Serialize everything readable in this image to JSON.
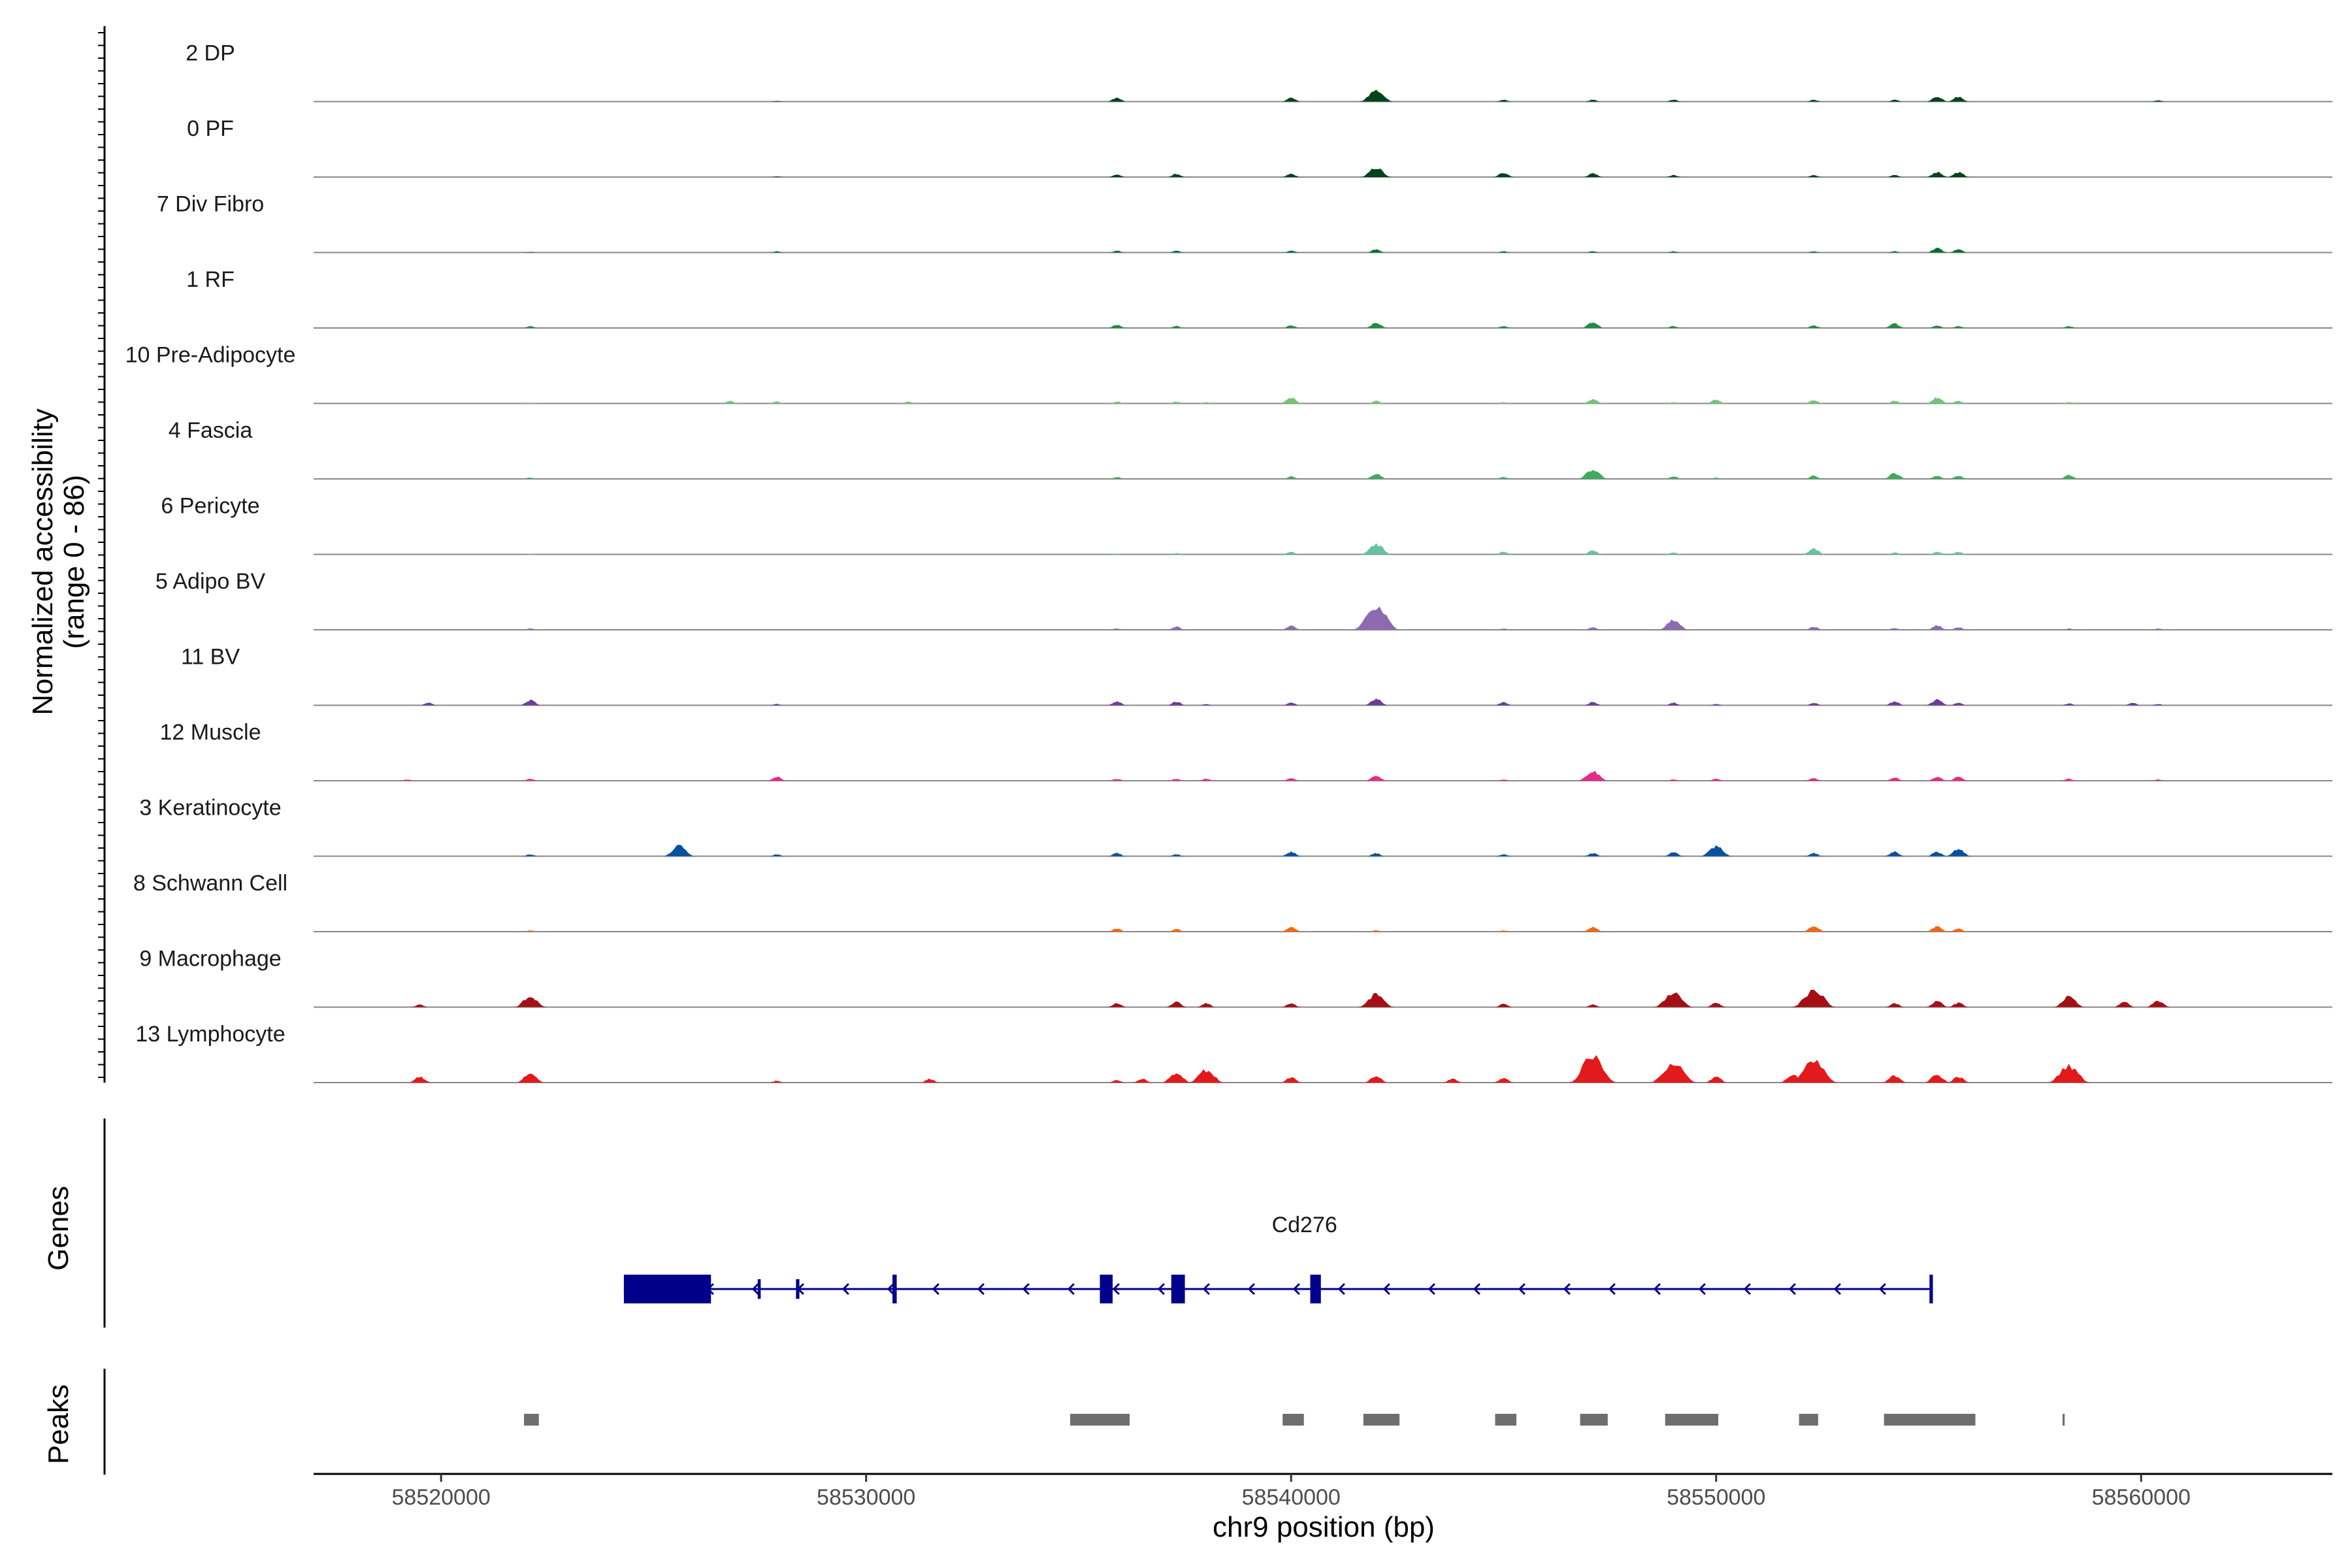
{
  "chart_data": {
    "type": "area",
    "title": "",
    "ylabel": "Normalized accessibility",
    "ylabel_range": "(range 0 - 86)",
    "xlabel": "chr9 position (bp)",
    "xlim": [
      58517000,
      58564500
    ],
    "ylim": [
      0,
      86
    ],
    "x_ticks": [
      58520000,
      58530000,
      58540000,
      58550000,
      58560000
    ],
    "x_tick_labels": [
      "58520000",
      "58530000",
      "58540000",
      "58550000",
      "58560000"
    ],
    "peak_centers": [
      58522100,
      58525600,
      58527900,
      58534900,
      58535900,
      58537300,
      58538000,
      58540000,
      58542000,
      58545000,
      58547100,
      58549000,
      58550000,
      58552300,
      58554200,
      58555200,
      58555700,
      58558300,
      58560400
    ],
    "series": [
      {
        "name": "2 DP",
        "color": "#00441b",
        "values": [
          0,
          0,
          1,
          0,
          6,
          0,
          0,
          6,
          18,
          3,
          3,
          3,
          0,
          3,
          3,
          8,
          8,
          0,
          2
        ]
      },
      {
        "name": "0 PF",
        "color": "#00441b",
        "values": [
          0,
          0,
          1,
          0,
          4,
          5,
          0,
          5,
          15,
          7,
          6,
          3,
          0,
          3,
          3,
          8,
          8,
          0,
          0
        ]
      },
      {
        "name": "7 Div Fibro",
        "color": "#006d2c",
        "values": [
          1,
          0,
          2,
          0,
          3,
          3,
          0,
          3,
          5,
          2,
          2,
          2,
          0,
          2,
          2,
          7,
          5,
          0,
          0
        ]
      },
      {
        "name": "1 RF",
        "color": "#238b45",
        "values": [
          3,
          0,
          0,
          0,
          5,
          3,
          0,
          4,
          8,
          3,
          9,
          3,
          0,
          4,
          7,
          4,
          3,
          3,
          0
        ]
      },
      {
        "name": "10 Pre-Adipocyte",
        "color": "#74c476",
        "values": [
          1,
          0,
          3,
          0,
          3,
          3,
          2,
          9,
          4,
          2,
          7,
          2,
          6,
          5,
          4,
          9,
          4,
          2,
          0
        ]
      },
      {
        "name": "4 Fascia",
        "color": "#41ab5d",
        "values": [
          2,
          0,
          0,
          0,
          3,
          0,
          0,
          4,
          8,
          3,
          15,
          4,
          2,
          5,
          9,
          5,
          5,
          6,
          0
        ]
      },
      {
        "name": "6 Pericyte",
        "color": "#66c2a4",
        "values": [
          1,
          0,
          0,
          0,
          1,
          2,
          0,
          4,
          16,
          4,
          6,
          3,
          0,
          9,
          3,
          4,
          4,
          0,
          0
        ]
      },
      {
        "name": "5 Adipo BV",
        "color": "#8c6bb1",
        "values": [
          2,
          0,
          0,
          0,
          2,
          5,
          0,
          6,
          35,
          2,
          4,
          15,
          0,
          5,
          3,
          7,
          4,
          2,
          2
        ]
      },
      {
        "name": "11 BV",
        "color": "#6a3d9a",
        "values": [
          8,
          0,
          2,
          0,
          6,
          6,
          2,
          4,
          10,
          5,
          5,
          4,
          2,
          4,
          6,
          9,
          4,
          3,
          2
        ]
      },
      {
        "name": "12 Muscle",
        "color": "#e7298a",
        "values": [
          3,
          0,
          6,
          0,
          3,
          3,
          3,
          4,
          8,
          2,
          15,
          2,
          3,
          4,
          5,
          6,
          6,
          3,
          2
        ]
      },
      {
        "name": "3 Keratinocyte",
        "color": "#08519c",
        "values": [
          3,
          16,
          3,
          0,
          5,
          3,
          0,
          7,
          5,
          3,
          5,
          6,
          16,
          5,
          7,
          7,
          11,
          0,
          0
        ]
      },
      {
        "name": "8 Schwann Cell",
        "color": "#f16913",
        "values": [
          2,
          0,
          0,
          0,
          5,
          4,
          0,
          7,
          2,
          2,
          7,
          0,
          0,
          9,
          0,
          8,
          5,
          0,
          0
        ]
      },
      {
        "name": "9 Macrophage",
        "color": "#a50f15",
        "values": [
          17,
          0,
          0,
          0,
          6,
          8,
          6,
          6,
          20,
          5,
          4,
          23,
          7,
          27,
          6,
          9,
          7,
          16,
          10
        ]
      },
      {
        "name": "13 Lymphocyte",
        "color": "#e31a1c",
        "values": [
          14,
          0,
          3,
          0,
          4,
          15,
          20,
          8,
          10,
          7,
          43,
          30,
          9,
          33,
          11,
          12,
          9,
          26,
          0
        ]
      }
    ],
    "extra_peaks": [
      {
        "series": "11 BV",
        "x": 58519700,
        "value": 4
      },
      {
        "series": "12 Muscle",
        "x": 58519200,
        "value": 2
      },
      {
        "series": "9 Macrophage",
        "x": 58519500,
        "value": 4
      },
      {
        "series": "13 Lymphocyte",
        "x": 58519500,
        "value": 9
      },
      {
        "series": "13 Lymphocyte",
        "x": 58531500,
        "value": 6
      },
      {
        "series": "13 Lymphocyte",
        "x": 58536500,
        "value": 6
      },
      {
        "series": "13 Lymphocyte",
        "x": 58543800,
        "value": 6
      },
      {
        "series": "13 Lymphocyte",
        "x": 58551800,
        "value": 12
      },
      {
        "series": "9 Macrophage",
        "x": 58559600,
        "value": 8
      },
      {
        "series": "11 BV",
        "x": 58559800,
        "value": 4
      },
      {
        "series": "10 Pre-Adipocyte",
        "x": 58526800,
        "value": 4
      },
      {
        "series": "10 Pre-Adipocyte",
        "x": 58531000,
        "value": 3
      }
    ],
    "gene": {
      "name": "Cd276",
      "color": "#00008b",
      "strand": "-",
      "start": 58524300,
      "end": 58555100,
      "exons": [
        {
          "start": 58524300,
          "end": 58526350,
          "thick": true
        },
        {
          "start": 58527450,
          "end": 58527520,
          "thick": false
        },
        {
          "start": 58528350,
          "end": 58528430,
          "thick": false
        },
        {
          "start": 58530620,
          "end": 58530720,
          "thick": true
        },
        {
          "start": 58535500,
          "end": 58535800,
          "thick": true
        },
        {
          "start": 58537180,
          "end": 58537500,
          "thick": true
        },
        {
          "start": 58540450,
          "end": 58540700,
          "thick": true
        },
        {
          "start": 58555020,
          "end": 58555100,
          "thick": true
        }
      ]
    },
    "peaks": [
      {
        "start": 58521950,
        "end": 58522300
      },
      {
        "start": 58534800,
        "end": 58536200
      },
      {
        "start": 58539800,
        "end": 58540300
      },
      {
        "start": 58541700,
        "end": 58542550
      },
      {
        "start": 58544800,
        "end": 58545300
      },
      {
        "start": 58546800,
        "end": 58547450
      },
      {
        "start": 58548800,
        "end": 58550050
      },
      {
        "start": 58551950,
        "end": 58552400
      },
      {
        "start": 58553950,
        "end": 58556100
      },
      {
        "start": 58558150,
        "end": 58558200
      }
    ],
    "panel_titles": {
      "genes": "Genes",
      "peaks": "Peaks"
    },
    "peak_color": "#6e6e6e"
  }
}
